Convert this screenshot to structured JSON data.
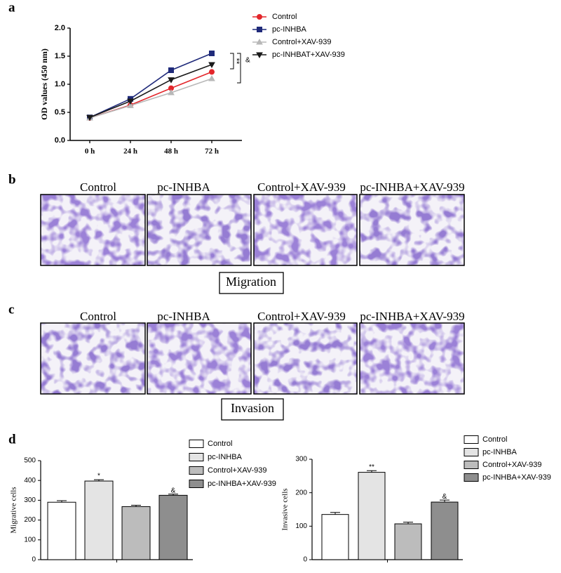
{
  "panel_labels": [
    "a",
    "b",
    "c",
    "d"
  ],
  "migration": {
    "columns": [
      "Control",
      "pc-INHBA",
      "Control+XAV-939",
      "pc-INHBA+XAV-939"
    ],
    "caption": "Migration"
  },
  "invasion": {
    "columns": [
      "Control",
      "pc-INHBA",
      "Control+XAV-939",
      "pc-INHBA+XAV-939"
    ],
    "caption": "Invasion"
  },
  "chart_data": [
    {
      "type": "line",
      "y_label": "OD values (450 nm)",
      "categories": [
        "0 h",
        "24 h",
        "48 h",
        "72 h"
      ],
      "ylim": [
        0,
        2
      ],
      "yticks": [
        {
          "value": 0,
          "label": "0.0"
        },
        0.5,
        {
          "value": 1,
          "label": "1.0"
        },
        1.5,
        {
          "value": 2,
          "label": "2.0"
        }
      ],
      "series": [
        {
          "name": "Control",
          "color": "#e3262b",
          "marker": "circle",
          "values": [
            0.4,
            0.63,
            0.93,
            1.22
          ]
        },
        {
          "name": "pc-INHBA",
          "color": "#1f2a7a",
          "marker": "square",
          "values": [
            0.41,
            0.74,
            1.25,
            1.55
          ]
        },
        {
          "name": "Control+XAV-939",
          "color": "#b8b8b8",
          "marker": "triangle-up",
          "values": [
            0.4,
            0.62,
            0.85,
            1.1
          ]
        },
        {
          "name": "pc-INHBAT+XAV-939",
          "color": "#1a1a1a",
          "marker": "triangle-down",
          "values": [
            0.41,
            0.7,
            1.08,
            1.35
          ]
        }
      ],
      "annotations": [
        "**",
        "&"
      ]
    },
    {
      "type": "bar",
      "y_label": "Migrative cells",
      "categories": [
        "Control",
        "pc-INHBA",
        "Control+XAV-939",
        "pc-INHBA+XAV-939"
      ],
      "colors": [
        "#ffffff",
        "#e4e4e4",
        "#bcbcbc",
        "#8e8e8e"
      ],
      "values": [
        290,
        397,
        268,
        325
      ],
      "errors": [
        8,
        7,
        7,
        6
      ],
      "annotations": [
        null,
        "*",
        null,
        "&"
      ],
      "ylim": [
        0,
        500
      ],
      "yticks": [
        0,
        100,
        200,
        300,
        400,
        500
      ]
    },
    {
      "type": "bar",
      "y_label": "Invasive cells",
      "categories": [
        "Control",
        "pc-INHBA",
        "Control+XAV-939",
        "pc-INHBA+XAV-939"
      ],
      "colors": [
        "#ffffff",
        "#e4e4e4",
        "#bcbcbc",
        "#8e8e8e"
      ],
      "values": [
        135,
        261,
        107,
        172
      ],
      "errors": [
        6,
        5,
        5,
        6
      ],
      "annotations": [
        null,
        "**",
        null,
        "&"
      ],
      "ylim": [
        0,
        300
      ],
      "yticks": [
        0,
        100,
        200,
        300
      ]
    }
  ]
}
